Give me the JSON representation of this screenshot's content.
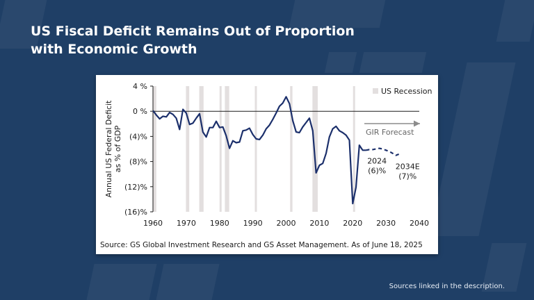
{
  "slide": {
    "title_line1": "US Fiscal Deficit Remains Out of Proportion",
    "title_line2": "with Economic Growth",
    "footer": "Sources linked in the description."
  },
  "chart_data": {
    "type": "line",
    "ylabel_line1": "Annual US Federal Deficit",
    "ylabel_line2": "as % of GDP",
    "xlim": [
      1960,
      2040
    ],
    "ylim": [
      -16,
      4
    ],
    "x_ticks": [
      1960,
      1970,
      1980,
      1990,
      2000,
      2010,
      2020,
      2030,
      2040
    ],
    "y_ticks": [
      {
        "value": 4,
        "label": "4 %"
      },
      {
        "value": 0,
        "label": "0 %"
      },
      {
        "value": -4,
        "label": "(4)%"
      },
      {
        "value": -8,
        "label": "(8)%"
      },
      {
        "value": -12,
        "label": "(12)%"
      },
      {
        "value": -16,
        "label": "(16)%"
      }
    ],
    "recessions": [
      [
        1960,
        1961
      ],
      [
        1969.9,
        1970.9
      ],
      [
        1973.9,
        1975.2
      ],
      [
        1980,
        1980.6
      ],
      [
        1981.6,
        1982.9
      ],
      [
        1990.6,
        1991.2
      ],
      [
        2001.2,
        2001.9
      ],
      [
        2007.9,
        2009.5
      ],
      [
        2020.1,
        2020.5
      ]
    ],
    "legend_label": "US Recession",
    "forecast_label": "GIR Forecast",
    "actual": {
      "x": [
        1960,
        1961,
        1962,
        1963,
        1964,
        1965,
        1966,
        1967,
        1968,
        1969,
        1970,
        1971,
        1972,
        1973,
        1974,
        1975,
        1976,
        1977,
        1978,
        1979,
        1980,
        1981,
        1982,
        1983,
        1984,
        1985,
        1986,
        1987,
        1988,
        1989,
        1990,
        1991,
        1992,
        1993,
        1994,
        1995,
        1996,
        1997,
        1998,
        1999,
        2000,
        2001,
        2002,
        2003,
        2004,
        2005,
        2006,
        2007,
        2008,
        2009,
        2010,
        2011,
        2012,
        2013,
        2014,
        2015,
        2016,
        2017,
        2018,
        2019,
        2020,
        2021,
        2022,
        2023,
        2024
      ],
      "y": [
        0.1,
        -0.6,
        -1.2,
        -0.8,
        -0.9,
        -0.2,
        -0.5,
        -1.1,
        -2.9,
        0.3,
        -0.3,
        -2.1,
        -1.9,
        -1.1,
        -0.4,
        -3.3,
        -4.1,
        -2.6,
        -2.6,
        -1.6,
        -2.6,
        -2.5,
        -3.9,
        -5.9,
        -4.7,
        -5.0,
        -4.9,
        -3.1,
        -3.0,
        -2.7,
        -3.7,
        -4.4,
        -4.5,
        -3.8,
        -2.8,
        -2.2,
        -1.3,
        -0.3,
        0.8,
        1.3,
        2.3,
        1.2,
        -1.5,
        -3.3,
        -3.4,
        -2.5,
        -1.8,
        -1.1,
        -3.1,
        -9.8,
        -8.6,
        -8.3,
        -6.7,
        -4.1,
        -2.8,
        -2.4,
        -3.1,
        -3.4,
        -3.8,
        -4.6,
        -14.7,
        -12.1,
        -5.4,
        -6.2,
        -6.2
      ]
    },
    "forecast": {
      "x": [
        2024,
        2025,
        2026,
        2027,
        2028,
        2029,
        2030,
        2031,
        2032,
        2033,
        2034
      ],
      "y": [
        -6.2,
        -6.1,
        -6.1,
        -6.0,
        -5.9,
        -6.0,
        -6.2,
        -6.4,
        -6.7,
        -7.0,
        -6.8
      ]
    },
    "annotations": [
      {
        "line1": "2024",
        "line2": "(6)%",
        "x": 2027.3,
        "y": -8.3
      },
      {
        "line1": "2034E",
        "line2": "(7)%",
        "x": 2036.5,
        "y": -9.2
      }
    ],
    "source": "Source: GS Global Investment Research and GS Asset Management. As of June 18, 2025",
    "colors": {
      "line": "#1b2f6b",
      "recession": "#e3dfdf",
      "axis": "#1a1a1a",
      "forecast_arrow": "#8c8c8c"
    }
  }
}
